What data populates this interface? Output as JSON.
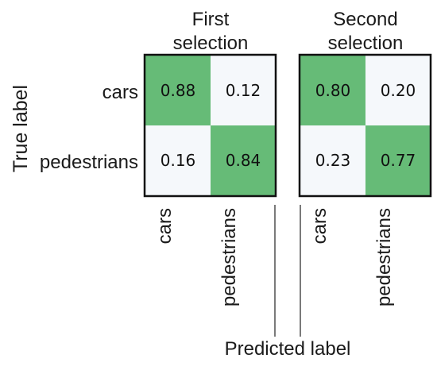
{
  "chart_data": {
    "type": "heatmap",
    "ylabel": "True label",
    "xlabel": "Predicted label",
    "row_labels": [
      "cars",
      "pedestrians"
    ],
    "col_labels": [
      "cars",
      "pedestrians"
    ],
    "colors": {
      "high": "#66bb77",
      "low": "#f5f8fb",
      "border": "#111111"
    },
    "matrices": [
      {
        "title_lines": [
          "First",
          "selection"
        ],
        "values": [
          [
            0.88,
            0.12
          ],
          [
            0.16,
            0.84
          ]
        ],
        "display": [
          [
            "0.88",
            "0.12"
          ],
          [
            "0.16",
            "0.84"
          ]
        ]
      },
      {
        "title_lines": [
          "Second",
          "selection"
        ],
        "values": [
          [
            0.8,
            0.2
          ],
          [
            0.23,
            0.77
          ]
        ],
        "display": [
          [
            "0.80",
            "0.20"
          ],
          [
            "0.23",
            "0.77"
          ]
        ]
      }
    ]
  }
}
